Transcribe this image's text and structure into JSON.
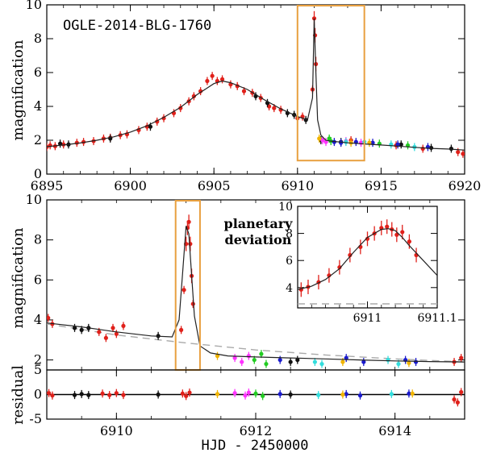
{
  "chart_data": [
    {
      "type": "scatter",
      "panel": "top",
      "title": "OGLE-2014-BLG-1760",
      "xlabel": "",
      "ylabel": "magnification",
      "xlim": [
        6895,
        6920
      ],
      "ylim": [
        0,
        10
      ],
      "x_ticks": [
        6895,
        6900,
        6905,
        6910,
        6915,
        6920
      ],
      "x_tick_labels": [
        "6895",
        "6900",
        "6905",
        "6910",
        "6915",
        "6920"
      ],
      "y_ticks": [
        0,
        2,
        4,
        6,
        8,
        10
      ],
      "y_tick_labels": [
        "0",
        "2",
        "4",
        "6",
        "8",
        "10"
      ],
      "model": {
        "x": [
          6895,
          6896,
          6897,
          6898,
          6899,
          6900,
          6901,
          6902,
          6903,
          6904,
          6905,
          6905.5,
          6906,
          6907,
          6908,
          6909,
          6910,
          6910.6,
          6910.9,
          6911.0,
          6911.1,
          6911.2,
          6911.4,
          6911.7,
          6912,
          6913,
          6914,
          6915,
          6916,
          6917,
          6918,
          6919,
          6920
        ],
        "y": [
          1.62,
          1.72,
          1.84,
          2.0,
          2.2,
          2.48,
          2.85,
          3.35,
          3.95,
          4.7,
          5.35,
          5.5,
          5.4,
          5.0,
          4.4,
          3.85,
          3.4,
          3.2,
          4.5,
          9.2,
          6.0,
          3.2,
          2.3,
          2.0,
          1.95,
          1.85,
          1.78,
          1.72,
          1.65,
          1.58,
          1.52,
          1.48,
          1.42
        ]
      },
      "series": [
        {
          "name": "",
          "color": "#e0201a",
          "points": [
            [
              6895.0,
              1.6
            ],
            [
              6895.2,
              1.7
            ],
            [
              6895.5,
              1.65
            ],
            [
              6896.0,
              1.75
            ],
            [
              6896.8,
              1.85
            ],
            [
              6897.2,
              1.9
            ],
            [
              6897.8,
              1.95
            ],
            [
              6898.4,
              2.1
            ],
            [
              6898.8,
              2.15
            ],
            [
              6899.4,
              2.3
            ],
            [
              6899.8,
              2.35
            ],
            [
              6900.5,
              2.6
            ],
            [
              6901.0,
              2.8
            ],
            [
              6901.6,
              3.1
            ],
            [
              6902.0,
              3.3
            ],
            [
              6902.6,
              3.6
            ],
            [
              6903.0,
              3.9
            ],
            [
              6903.5,
              4.3
            ],
            [
              6903.8,
              4.6
            ],
            [
              6904.2,
              4.9
            ],
            [
              6904.6,
              5.5
            ],
            [
              6904.9,
              5.8
            ],
            [
              6905.2,
              5.5
            ],
            [
              6905.5,
              5.6
            ],
            [
              6906.0,
              5.3
            ],
            [
              6906.4,
              5.2
            ],
            [
              6906.8,
              4.9
            ],
            [
              6907.3,
              4.8
            ],
            [
              6907.8,
              4.5
            ],
            [
              6908.3,
              4.0
            ],
            [
              6908.6,
              3.9
            ],
            [
              6909.0,
              3.8
            ],
            [
              6910.0,
              3.3
            ],
            [
              6910.3,
              3.4
            ],
            [
              6910.9,
              5.0
            ],
            [
              6911.0,
              9.2
            ],
            [
              6911.05,
              8.2
            ],
            [
              6911.1,
              6.5
            ],
            [
              6913.2,
              2.0
            ],
            [
              6915.9,
              1.7
            ],
            [
              6917.5,
              1.5
            ],
            [
              6919.6,
              1.3
            ],
            [
              6919.9,
              1.2
            ]
          ]
        },
        {
          "name": "",
          "color": "#111111",
          "points": [
            [
              6895.8,
              1.8
            ],
            [
              6896.3,
              1.75
            ],
            [
              6898.8,
              2.1
            ],
            [
              6901.2,
              2.8
            ],
            [
              6907.5,
              4.6
            ],
            [
              6908.2,
              4.2
            ],
            [
              6909.4,
              3.6
            ],
            [
              6909.8,
              3.5
            ],
            [
              6910.5,
              3.2
            ],
            [
              6911.4,
              2.0
            ],
            [
              6912.6,
              1.9
            ],
            [
              6916.2,
              1.75
            ],
            [
              6918.0,
              1.55
            ],
            [
              6919.2,
              1.5
            ]
          ]
        },
        {
          "name": "",
          "color": "#ff33ff",
          "points": [
            [
              6911.5,
              2.0
            ],
            [
              6911.7,
              1.9
            ],
            [
              6912.9,
              1.95
            ],
            [
              6913.8,
              1.85
            ]
          ]
        },
        {
          "name": "",
          "color": "#22cc22",
          "points": [
            [
              6911.9,
              2.1
            ],
            [
              6912.0,
              1.95
            ],
            [
              6914.9,
              1.8
            ],
            [
              6916.6,
              1.7
            ]
          ]
        },
        {
          "name": "",
          "color": "#1a1acc",
          "points": [
            [
              6912.2,
              1.9
            ],
            [
              6912.6,
              1.85
            ],
            [
              6913.5,
              1.9
            ],
            [
              6914.5,
              1.85
            ],
            [
              6916.0,
              1.75
            ],
            [
              6917.8,
              1.6
            ]
          ]
        },
        {
          "name": "",
          "color": "#33dddd",
          "points": [
            [
              6912.9,
              1.9
            ],
            [
              6914.0,
              1.9
            ],
            [
              6915.6,
              1.75
            ],
            [
              6917.0,
              1.6
            ]
          ]
        },
        {
          "name": "",
          "color": "#f0b400",
          "points": [
            [
              6911.3,
              2.1
            ],
            [
              6913.2,
              1.85
            ],
            [
              6914.3,
              1.85
            ]
          ]
        }
      ],
      "highlight_box": {
        "x": [
          6910.0,
          6914.0
        ],
        "y": [
          0.8,
          10.0
        ],
        "color": "#e8a040"
      }
    },
    {
      "type": "scatter",
      "panel": "bottom",
      "xlabel": "",
      "ylabel": "magnification",
      "xlim": [
        6909,
        6915
      ],
      "ylim": [
        1.5,
        10
      ],
      "y_ticks": [
        2,
        4,
        6,
        8,
        10
      ],
      "y_tick_labels": [
        "2",
        "4",
        "6",
        "8",
        "10"
      ],
      "model": {
        "x": [
          6909.0,
          6909.5,
          6910.0,
          6910.5,
          6910.8,
          6910.9,
          6910.95,
          6911.0,
          6911.04,
          6911.08,
          6911.12,
          6911.2,
          6911.35,
          6911.6,
          6912.0,
          6912.5,
          6913.0,
          6913.5,
          6914.0,
          6914.5,
          6915.0
        ],
        "y": [
          3.85,
          3.65,
          3.4,
          3.2,
          3.15,
          4.0,
          6.3,
          8.7,
          8.3,
          6.2,
          4.2,
          2.7,
          2.35,
          2.2,
          2.15,
          2.1,
          2.05,
          2.0,
          1.95,
          1.92,
          1.9
        ]
      },
      "baseline": {
        "x": [
          6909.0,
          6910.0,
          6911.0,
          6912.0,
          6913.0,
          6914.0,
          6915.0
        ],
        "y": [
          3.8,
          3.25,
          2.85,
          2.5,
          2.25,
          2.05,
          1.9
        ]
      },
      "series": [
        {
          "name": "",
          "color": "#e0201a",
          "points": [
            [
              6909.02,
              4.1
            ],
            [
              6909.08,
              3.8
            ],
            [
              6909.75,
              3.4
            ],
            [
              6909.85,
              3.1
            ],
            [
              6909.95,
              3.6
            ],
            [
              6910.0,
              3.3
            ],
            [
              6910.1,
              3.7
            ],
            [
              6910.93,
              3.5
            ],
            [
              6910.97,
              5.5
            ],
            [
              6911.0,
              7.8
            ],
            [
              6911.02,
              8.6
            ],
            [
              6911.04,
              8.9
            ],
            [
              6911.06,
              7.8
            ],
            [
              6911.08,
              6.2
            ],
            [
              6911.1,
              4.8
            ],
            [
              6914.85,
              1.9
            ],
            [
              6914.95,
              2.1
            ]
          ]
        },
        {
          "name": "",
          "color": "#111111",
          "points": [
            [
              6909.4,
              3.6
            ],
            [
              6909.5,
              3.5
            ],
            [
              6909.6,
              3.6
            ],
            [
              6910.6,
              3.2
            ],
            [
              6912.5,
              1.9
            ],
            [
              6912.6,
              2.0
            ]
          ]
        },
        {
          "name": "",
          "color": "#ff33ff",
          "points": [
            [
              6911.7,
              2.1
            ],
            [
              6911.8,
              1.9
            ],
            [
              6911.9,
              2.2
            ]
          ]
        },
        {
          "name": "",
          "color": "#22cc22",
          "points": [
            [
              6911.98,
              2.0
            ],
            [
              6912.08,
              2.3
            ],
            [
              6912.15,
              1.8
            ]
          ]
        },
        {
          "name": "",
          "color": "#1a1acc",
          "points": [
            [
              6912.35,
              2.0
            ],
            [
              6913.3,
              2.1
            ],
            [
              6913.55,
              1.9
            ],
            [
              6914.15,
              2.0
            ],
            [
              6914.3,
              1.9
            ]
          ]
        },
        {
          "name": "",
          "color": "#33dddd",
          "points": [
            [
              6912.85,
              1.9
            ],
            [
              6912.95,
              1.8
            ],
            [
              6913.9,
              2.0
            ],
            [
              6914.05,
              1.8
            ]
          ]
        },
        {
          "name": "",
          "color": "#f0b400",
          "points": [
            [
              6911.45,
              2.2
            ],
            [
              6913.25,
              1.9
            ],
            [
              6914.2,
              1.85
            ]
          ]
        }
      ],
      "highlight_box": {
        "x": [
          6910.85,
          6911.2
        ],
        "y": [
          1.5,
          10.0
        ],
        "color": "#e8a040"
      }
    },
    {
      "type": "scatter",
      "panel": "inset",
      "annotation": "planetary\ndeviation",
      "xlabel": "",
      "ylabel": "",
      "xlim": [
        6910.9,
        6911.1
      ],
      "ylim": [
        2.5,
        10
      ],
      "x_ticks": [
        6911,
        6911.1
      ],
      "x_tick_labels": [
        "6911",
        "6911.1"
      ],
      "y_ticks": [
        4,
        6,
        8,
        10
      ],
      "y_tick_labels": [
        "4",
        "6",
        "8",
        "10"
      ],
      "model": {
        "x": [
          6910.9,
          6910.92,
          6910.94,
          6910.96,
          6910.98,
          6911.0,
          6911.02,
          6911.03,
          6911.04,
          6911.05,
          6911.06,
          6911.08,
          6911.1
        ],
        "y": [
          3.85,
          4.1,
          4.6,
          5.4,
          6.6,
          7.7,
          8.3,
          8.35,
          8.2,
          7.7,
          7.1,
          6.0,
          4.9
        ]
      },
      "baseline": {
        "x": [
          6910.9,
          6911.1
        ],
        "y": [
          2.8,
          2.8
        ]
      },
      "series": [
        {
          "name": "",
          "color": "#e0201a",
          "points": [
            [
              6910.905,
              3.85
            ],
            [
              6910.915,
              4.05
            ],
            [
              6910.93,
              4.4
            ],
            [
              6910.945,
              4.9
            ],
            [
              6910.96,
              5.5
            ],
            [
              6910.975,
              6.4
            ],
            [
              6910.99,
              7.0
            ],
            [
              6911.0,
              7.6
            ],
            [
              6911.01,
              8.0
            ],
            [
              6911.02,
              8.4
            ],
            [
              6911.028,
              8.5
            ],
            [
              6911.035,
              8.3
            ],
            [
              6911.042,
              7.9
            ],
            [
              6911.05,
              8.1
            ],
            [
              6911.06,
              7.4
            ],
            [
              6911.07,
              6.4
            ]
          ]
        }
      ]
    },
    {
      "type": "scatter",
      "panel": "residual",
      "xlabel": "HJD - 2450000",
      "ylabel": "residual",
      "xlim": [
        6909,
        6915
      ],
      "ylim": [
        -5,
        5
      ],
      "x_ticks": [
        6910,
        6912,
        6914
      ],
      "x_tick_labels": [
        "6910",
        "6912",
        "6914"
      ],
      "y_ticks": [
        -5,
        0,
        5
      ],
      "y_tick_labels": [
        "-5",
        "0",
        "5"
      ],
      "series": [
        {
          "name": "",
          "color": "#e0201a",
          "points": [
            [
              6909.03,
              0.3
            ],
            [
              6909.08,
              -0.2
            ],
            [
              6909.8,
              0.2
            ],
            [
              6909.9,
              -0.1
            ],
            [
              6910.0,
              0.3
            ],
            [
              6910.1,
              -0.1
            ],
            [
              6910.95,
              0.2
            ],
            [
              6911.0,
              -0.3
            ],
            [
              6911.05,
              0.4
            ],
            [
              6914.85,
              -1.0
            ],
            [
              6914.9,
              -1.6
            ],
            [
              6914.95,
              0.5
            ]
          ]
        },
        {
          "name": "",
          "color": "#111111",
          "points": [
            [
              6909.4,
              -0.1
            ],
            [
              6909.5,
              0.1
            ],
            [
              6909.6,
              -0.1
            ],
            [
              6910.6,
              0.0
            ],
            [
              6912.5,
              0.0
            ]
          ]
        },
        {
          "name": "",
          "color": "#ff33ff",
          "points": [
            [
              6911.7,
              0.3
            ],
            [
              6911.85,
              -0.2
            ],
            [
              6911.9,
              0.4
            ]
          ]
        },
        {
          "name": "",
          "color": "#22cc22",
          "points": [
            [
              6912.0,
              0.2
            ],
            [
              6912.1,
              -0.3
            ]
          ]
        },
        {
          "name": "",
          "color": "#1a1acc",
          "points": [
            [
              6912.35,
              0.1
            ],
            [
              6913.3,
              0.1
            ],
            [
              6913.5,
              -0.2
            ],
            [
              6914.2,
              0.2
            ]
          ]
        },
        {
          "name": "",
          "color": "#33dddd",
          "points": [
            [
              6912.9,
              -0.1
            ],
            [
              6913.95,
              0.1
            ]
          ]
        },
        {
          "name": "",
          "color": "#f0b400",
          "points": [
            [
              6911.45,
              0.1
            ],
            [
              6913.25,
              0.0
            ],
            [
              6914.25,
              0.2
            ]
          ]
        }
      ]
    }
  ]
}
